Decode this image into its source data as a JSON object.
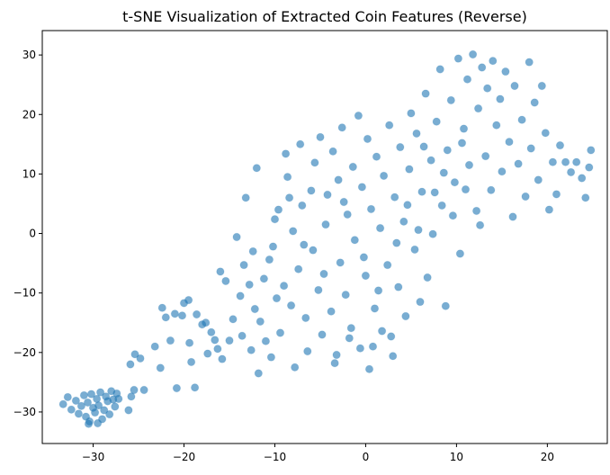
{
  "chart_data": {
    "type": "scatter",
    "title": "t-SNE Visualization of Extracted Coin Features (Reverse)",
    "xlabel": "",
    "ylabel": "",
    "xlim": [
      -35.6,
      26.6
    ],
    "ylim": [
      -35.3,
      34.1
    ],
    "xticks": [
      -30,
      -20,
      -10,
      0,
      10,
      20
    ],
    "yticks": [
      -30,
      -20,
      -10,
      0,
      10,
      20,
      30
    ],
    "grid": false,
    "legend": "none",
    "color": "#1f77b4",
    "alpha": 0.6,
    "series": [
      {
        "points": [
          [
            -33.3,
            -28.7
          ],
          [
            -32.8,
            -27.5
          ],
          [
            -32.4,
            -29.6
          ],
          [
            -31.9,
            -28.1
          ],
          [
            -31.6,
            -30.3
          ],
          [
            -31.3,
            -29.0
          ],
          [
            -31.0,
            -27.2
          ],
          [
            -30.8,
            -30.8
          ],
          [
            -30.6,
            -28.4
          ],
          [
            -30.4,
            -31.6
          ],
          [
            -30.2,
            -27.0
          ],
          [
            -30.0,
            -29.3
          ],
          [
            -29.8,
            -30.1
          ],
          [
            -29.6,
            -27.8
          ],
          [
            -29.4,
            -28.9
          ],
          [
            -29.2,
            -26.7
          ],
          [
            -29.0,
            -31.2
          ],
          [
            -28.8,
            -29.7
          ],
          [
            -28.6,
            -27.4
          ],
          [
            -28.4,
            -28.2
          ],
          [
            -28.2,
            -30.4
          ],
          [
            -28.0,
            -26.5
          ],
          [
            -27.8,
            -27.9
          ],
          [
            -27.6,
            -29.1
          ],
          [
            -27.4,
            -26.9
          ],
          [
            -27.2,
            -27.8
          ],
          [
            -30.5,
            -32.0
          ],
          [
            -29.5,
            -31.9
          ],
          [
            -26.1,
            -29.7
          ],
          [
            -25.8,
            -27.4
          ],
          [
            -25.5,
            -26.3
          ],
          [
            -25.9,
            -22.0
          ],
          [
            -25.4,
            -20.3
          ],
          [
            -24.8,
            -21.0
          ],
          [
            -24.4,
            -26.3
          ],
          [
            -23.2,
            -19.0
          ],
          [
            -22.6,
            -22.6
          ],
          [
            -22.4,
            -12.5
          ],
          [
            -22.0,
            -14.1
          ],
          [
            -21.5,
            -18.0
          ],
          [
            -21.0,
            -13.5
          ],
          [
            -20.8,
            -26.0
          ],
          [
            -20.2,
            -13.8
          ],
          [
            -20.0,
            -11.7
          ],
          [
            -19.5,
            -11.2
          ],
          [
            -19.4,
            -18.4
          ],
          [
            -19.2,
            -21.6
          ],
          [
            -18.8,
            -25.9
          ],
          [
            -18.6,
            -13.6
          ],
          [
            -18.0,
            -15.3
          ],
          [
            -17.6,
            -15.0
          ],
          [
            -17.4,
            -20.2
          ],
          [
            -17.0,
            -16.6
          ],
          [
            -16.6,
            -17.9
          ],
          [
            -16.3,
            -19.4
          ],
          [
            -16.0,
            -6.4
          ],
          [
            -15.8,
            -21.1
          ],
          [
            -15.4,
            -8.0
          ],
          [
            -15.0,
            -18.0
          ],
          [
            -14.6,
            -14.4
          ],
          [
            -14.2,
            -0.6
          ],
          [
            -13.8,
            -10.5
          ],
          [
            -13.6,
            -17.2
          ],
          [
            -13.4,
            -5.3
          ],
          [
            -13.2,
            6.0
          ],
          [
            -12.8,
            -8.6
          ],
          [
            -12.6,
            -19.6
          ],
          [
            -12.2,
            -12.7
          ],
          [
            -12.0,
            11.0
          ],
          [
            -11.8,
            -23.5
          ],
          [
            -11.6,
            -14.8
          ],
          [
            -11.2,
            -7.6
          ],
          [
            -11.0,
            -18.1
          ],
          [
            -10.6,
            -4.4
          ],
          [
            -10.4,
            -20.8
          ],
          [
            -10.0,
            2.4
          ],
          [
            -9.8,
            -10.9
          ],
          [
            -9.6,
            4.0
          ],
          [
            -9.4,
            -16.7
          ],
          [
            -9.0,
            -8.8
          ],
          [
            -8.8,
            13.4
          ],
          [
            -8.6,
            9.5
          ],
          [
            -8.2,
            -12.1
          ],
          [
            -8.0,
            0.4
          ],
          [
            -7.8,
            -22.5
          ],
          [
            -7.4,
            -6.0
          ],
          [
            -7.2,
            15.0
          ],
          [
            -7.0,
            4.7
          ],
          [
            -6.6,
            -14.2
          ],
          [
            -6.4,
            -19.8
          ],
          [
            -6.0,
            7.2
          ],
          [
            -5.8,
            -2.8
          ],
          [
            -5.6,
            11.9
          ],
          [
            -5.2,
            -9.5
          ],
          [
            -5.0,
            16.2
          ],
          [
            -4.8,
            -17.0
          ],
          [
            -4.4,
            1.5
          ],
          [
            -4.2,
            6.5
          ],
          [
            -3.8,
            -13.1
          ],
          [
            -3.6,
            13.8
          ],
          [
            -3.4,
            -21.8
          ],
          [
            -3.0,
            9.0
          ],
          [
            -2.8,
            -4.9
          ],
          [
            -2.6,
            17.8
          ],
          [
            -2.2,
            -10.3
          ],
          [
            -2.0,
            3.2
          ],
          [
            -1.6,
            -15.9
          ],
          [
            -1.4,
            11.2
          ],
          [
            -1.2,
            -1.1
          ],
          [
            -0.8,
            19.8
          ],
          [
            -0.6,
            -19.3
          ],
          [
            -0.4,
            7.8
          ],
          [
            0.0,
            -7.1
          ],
          [
            0.2,
            15.9
          ],
          [
            0.4,
            -22.8
          ],
          [
            0.6,
            4.1
          ],
          [
            1.0,
            -12.6
          ],
          [
            1.2,
            12.9
          ],
          [
            1.6,
            0.9
          ],
          [
            1.8,
            -16.4
          ],
          [
            2.0,
            9.7
          ],
          [
            2.4,
            -5.3
          ],
          [
            2.6,
            18.2
          ],
          [
            3.0,
            -20.6
          ],
          [
            3.2,
            6.1
          ],
          [
            3.6,
            -9.0
          ],
          [
            3.8,
            14.5
          ],
          [
            4.2,
            2.0
          ],
          [
            4.4,
            -13.9
          ],
          [
            4.8,
            10.8
          ],
          [
            5.0,
            20.2
          ],
          [
            5.4,
            -2.7
          ],
          [
            5.6,
            16.8
          ],
          [
            6.0,
            -11.5
          ],
          [
            6.2,
            7.0
          ],
          [
            6.6,
            23.5
          ],
          [
            6.8,
            -7.4
          ],
          [
            7.2,
            12.3
          ],
          [
            7.4,
            -0.1
          ],
          [
            7.8,
            18.8
          ],
          [
            8.2,
            27.6
          ],
          [
            8.4,
            4.7
          ],
          [
            8.8,
            -12.2
          ],
          [
            9.0,
            14.0
          ],
          [
            9.4,
            22.4
          ],
          [
            9.8,
            8.6
          ],
          [
            10.2,
            29.4
          ],
          [
            10.4,
            -3.4
          ],
          [
            10.8,
            17.6
          ],
          [
            11.2,
            25.9
          ],
          [
            11.4,
            11.5
          ],
          [
            11.8,
            30.1
          ],
          [
            12.2,
            3.8
          ],
          [
            12.4,
            21.0
          ],
          [
            12.8,
            27.9
          ],
          [
            13.2,
            13.0
          ],
          [
            13.4,
            24.4
          ],
          [
            13.8,
            7.3
          ],
          [
            14.0,
            29.0
          ],
          [
            14.4,
            18.2
          ],
          [
            14.8,
            22.6
          ],
          [
            15.0,
            10.4
          ],
          [
            15.4,
            27.2
          ],
          [
            15.8,
            15.4
          ],
          [
            16.2,
            2.8
          ],
          [
            16.4,
            24.8
          ],
          [
            16.8,
            11.7
          ],
          [
            17.2,
            19.1
          ],
          [
            17.6,
            6.2
          ],
          [
            18.0,
            28.8
          ],
          [
            18.2,
            14.3
          ],
          [
            18.6,
            22.0
          ],
          [
            19.0,
            9.0
          ],
          [
            19.4,
            24.8
          ],
          [
            19.8,
            16.9
          ],
          [
            20.2,
            4.0
          ],
          [
            20.6,
            12.0
          ],
          [
            21.0,
            6.6
          ],
          [
            21.4,
            14.8
          ],
          [
            22.0,
            12.0
          ],
          [
            22.6,
            10.3
          ],
          [
            23.2,
            12.0
          ],
          [
            23.8,
            9.3
          ],
          [
            24.2,
            6.0
          ],
          [
            24.8,
            14.0
          ],
          [
            24.6,
            11.1
          ],
          [
            -1.8,
            -17.6
          ],
          [
            -3.2,
            -20.4
          ],
          [
            0.8,
            -19.0
          ],
          [
            2.8,
            -17.3
          ],
          [
            1.4,
            -9.6
          ],
          [
            -0.2,
            -4.0
          ],
          [
            3.4,
            -1.6
          ],
          [
            4.6,
            4.8
          ],
          [
            -4.6,
            -6.8
          ],
          [
            -6.8,
            -1.9
          ],
          [
            -2.4,
            5.3
          ],
          [
            5.8,
            0.6
          ],
          [
            7.6,
            6.9
          ],
          [
            9.6,
            3.0
          ],
          [
            11.0,
            7.4
          ],
          [
            12.6,
            1.4
          ],
          [
            8.6,
            10.2
          ],
          [
            10.6,
            15.2
          ],
          [
            6.4,
            14.6
          ],
          [
            -8.4,
            6.0
          ],
          [
            -10.2,
            -2.2
          ],
          [
            -12.4,
            -3.0
          ]
        ]
      }
    ]
  }
}
